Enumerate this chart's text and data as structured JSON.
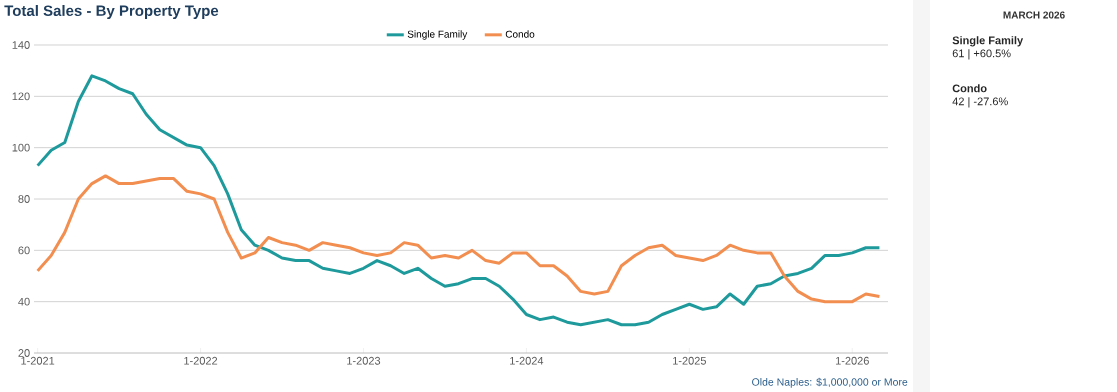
{
  "chart_data": [
    {
      "type": "line",
      "title": "Total Sales - By Property Type",
      "x": [
        "2021-01",
        "2021-02",
        "2021-03",
        "2021-04",
        "2021-05",
        "2021-06",
        "2021-07",
        "2021-08",
        "2021-09",
        "2021-10",
        "2021-11",
        "2021-12",
        "2022-01",
        "2022-02",
        "2022-03",
        "2022-04",
        "2022-05",
        "2022-06",
        "2022-07",
        "2022-08",
        "2022-09",
        "2022-10",
        "2022-11",
        "2022-12",
        "2023-01",
        "2023-02",
        "2023-03",
        "2023-04",
        "2023-05",
        "2023-06",
        "2023-07",
        "2023-08",
        "2023-09",
        "2023-10",
        "2023-11",
        "2023-12",
        "2024-01",
        "2024-02",
        "2024-03",
        "2024-04",
        "2024-05",
        "2024-06",
        "2024-07",
        "2024-08",
        "2024-09",
        "2024-10",
        "2024-11",
        "2024-12",
        "2025-01",
        "2025-02",
        "2025-03",
        "2025-04",
        "2025-05",
        "2025-06",
        "2025-07",
        "2025-08",
        "2025-09",
        "2025-10",
        "2025-11",
        "2025-12",
        "2026-01",
        "2026-02",
        "2026-03"
      ],
      "series": [
        {
          "name": "Single Family",
          "color": "#1f9a9c",
          "values": [
            93,
            99,
            102,
            118,
            128,
            126,
            123,
            121,
            113,
            107,
            104,
            101,
            100,
            93,
            82,
            68,
            62,
            60,
            57,
            56,
            56,
            53,
            52,
            51,
            53,
            56,
            54,
            51,
            53,
            49,
            46,
            47,
            49,
            49,
            46,
            41,
            35,
            33,
            34,
            32,
            31,
            32,
            33,
            31,
            31,
            32,
            35,
            37,
            39,
            37,
            38,
            43,
            39,
            46,
            47,
            50,
            51,
            53,
            58,
            58,
            59,
            61,
            61
          ]
        },
        {
          "name": "Condo",
          "color": "#f28e50",
          "values": [
            52,
            58,
            67,
            80,
            86,
            89,
            86,
            86,
            87,
            88,
            88,
            83,
            82,
            80,
            67,
            57,
            59,
            65,
            63,
            62,
            60,
            63,
            62,
            61,
            59,
            58,
            59,
            63,
            62,
            57,
            58,
            57,
            60,
            56,
            55,
            59,
            59,
            54,
            54,
            50,
            44,
            43,
            44,
            54,
            58,
            61,
            62,
            58,
            57,
            56,
            58,
            62,
            60,
            59,
            59,
            50,
            44,
            41,
            40,
            40,
            40,
            43,
            42
          ]
        }
      ],
      "xlim": [
        "2020-12-23",
        "2026-03-20"
      ],
      "xticks": [
        {
          "value": "2021-01",
          "label": "1-2021"
        },
        {
          "value": "2022-01",
          "label": "1-2022"
        },
        {
          "value": "2023-01",
          "label": "1-2023"
        },
        {
          "value": "2024-01",
          "label": "1-2024"
        },
        {
          "value": "2025-01",
          "label": "1-2025"
        },
        {
          "value": "2026-01",
          "label": "1-2026"
        }
      ],
      "ylim": [
        20,
        140
      ],
      "yticks": [
        20,
        40,
        60,
        80,
        100,
        120,
        140
      ],
      "grid": "y",
      "legend": "top",
      "marker": "none",
      "line_style": "solid",
      "annotations": [
        "Olde Naples: $1,000,000 or More"
      ]
    },
    {
      "type": "other",
      "title": "MARCH 2026",
      "annotations": [
        "Single Family",
        "61 | +60.5%",
        "Condo",
        "42 | -27.6%"
      ]
    }
  ]
}
